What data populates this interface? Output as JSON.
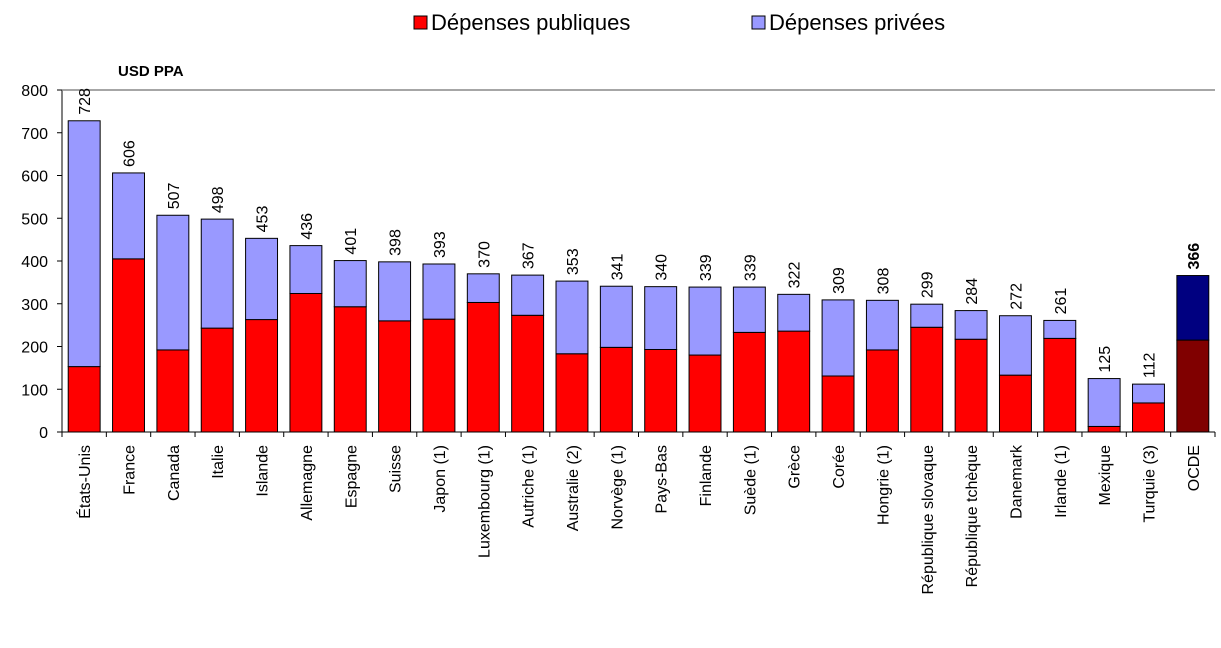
{
  "chart_data": {
    "type": "bar",
    "stacked": true,
    "unit_label": "USD PPA",
    "legend": {
      "position": "top-center",
      "entries": [
        {
          "name": "Dépenses publiques",
          "color": "#ff0000"
        },
        {
          "name": "Dépenses privées",
          "color": "#9999ff"
        }
      ]
    },
    "categories": [
      "États-Unis",
      "France",
      "Canada",
      "Italie",
      "Islande",
      "Allemagne",
      "Espagne",
      "Suisse",
      "Japon (1)",
      "Luxembourg (1)",
      "Autriche (1)",
      "Australie (2)",
      "Norvège (1)",
      "Pays-Bas",
      "Finlande",
      "Suède (1)",
      "Grèce",
      "Corée",
      "Hongrie (1)",
      "République slovaque",
      "République tchèque",
      "Danemark",
      "Irlande (1)",
      "Mexique",
      "Turquie (3)",
      "OCDE"
    ],
    "totals": [
      "728",
      "606",
      "507",
      "498",
      "453",
      "436",
      "401",
      "398",
      "393",
      "370",
      "367",
      "353",
      "341",
      "340",
      "339",
      "339",
      "322",
      "309",
      "308",
      "299",
      "284",
      "272",
      "261",
      "125",
      "112",
      "366"
    ],
    "series": [
      {
        "name": "Dépenses publiques",
        "values": [
          153,
          405,
          192,
          243,
          263,
          324,
          293,
          260,
          264,
          303,
          273,
          183,
          198,
          193,
          180,
          233,
          236,
          131,
          192,
          245,
          217,
          133,
          219,
          13,
          68,
          215
        ]
      },
      {
        "name": "Dépenses privées",
        "values": [
          575,
          201,
          315,
          255,
          190,
          112,
          108,
          138,
          129,
          67,
          94,
          170,
          143,
          147,
          159,
          106,
          86,
          178,
          116,
          54,
          67,
          139,
          42,
          112,
          44,
          151
        ]
      }
    ],
    "highlight": {
      "category": "OCDE",
      "public_color": "#800000",
      "private_color": "#000080"
    },
    "y_ticks": [
      "0",
      "100",
      "200",
      "300",
      "400",
      "500",
      "600",
      "700",
      "800"
    ],
    "ylim": [
      0,
      800
    ],
    "grid": false
  }
}
